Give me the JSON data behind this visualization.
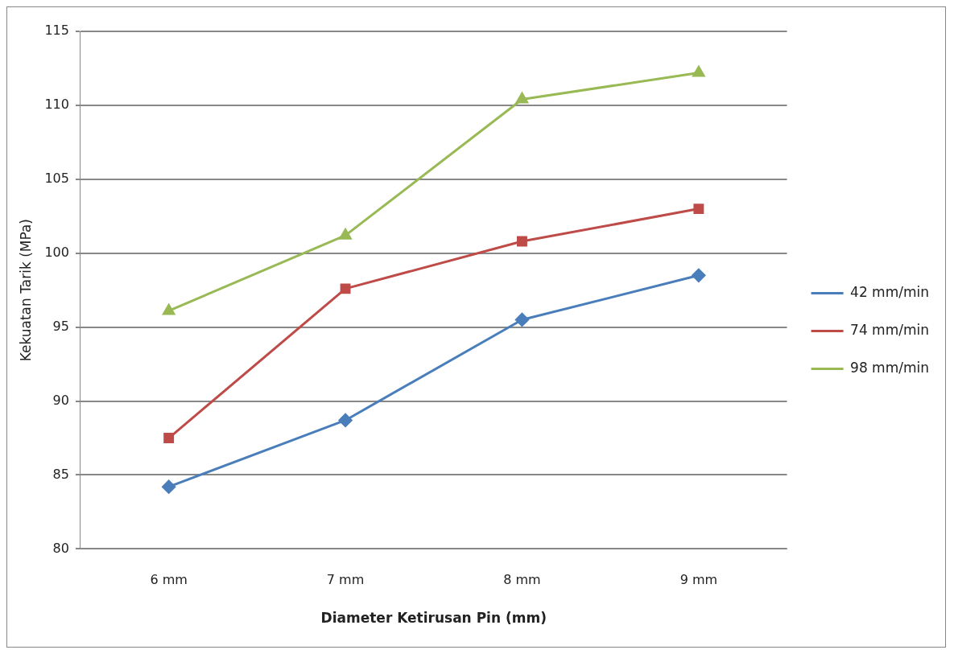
{
  "chart_data": {
    "type": "line",
    "xlabel": "Diameter Ketirusan Pin (mm)",
    "ylabel": "Kekuatan Tarik (MPa)",
    "categories": [
      "6 mm",
      "7 mm",
      "8 mm",
      "9 mm"
    ],
    "series": [
      {
        "name": "42 mm/min",
        "color": "#4a7ebb",
        "marker": "diamond",
        "values": [
          84.2,
          88.7,
          95.5,
          98.5
        ]
      },
      {
        "name": "74 mm/min",
        "color": "#be4b48",
        "marker": "square",
        "values": [
          87.5,
          97.6,
          100.8,
          103.0
        ]
      },
      {
        "name": "98 mm/min",
        "color": "#98b954",
        "marker": "triangle",
        "values": [
          96.1,
          101.2,
          110.4,
          112.2
        ]
      }
    ],
    "ylim": [
      80,
      115
    ],
    "yticks": [
      80,
      85,
      90,
      95,
      100,
      105,
      110,
      115
    ],
    "grid": "y",
    "legend": "right"
  }
}
